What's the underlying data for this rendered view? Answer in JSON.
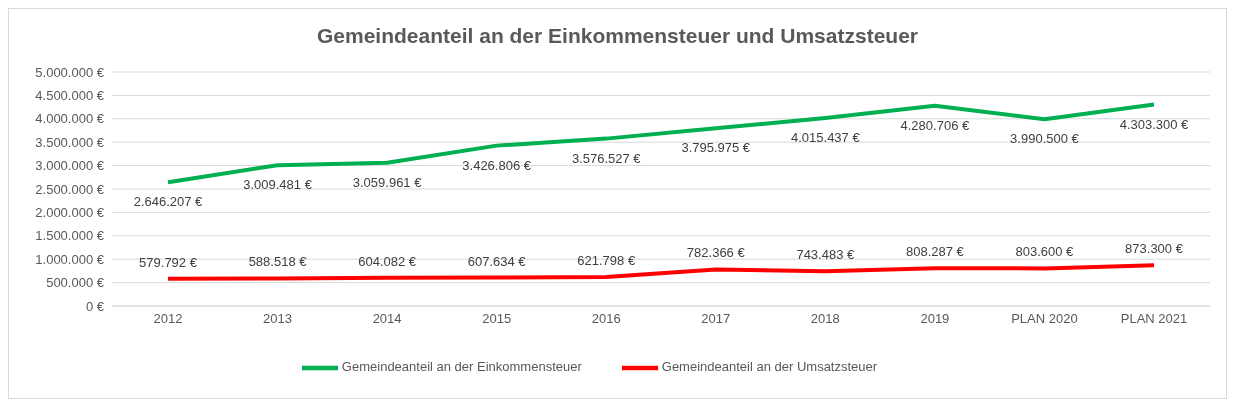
{
  "chart_data": {
    "type": "line",
    "title": "Gemeindeanteil an der Einkommensteuer und Umsatzsteuer",
    "categories": [
      "2012",
      "2013",
      "2014",
      "2015",
      "2016",
      "2017",
      "2018",
      "2019",
      "PLAN 2020",
      "PLAN 2021"
    ],
    "series": [
      {
        "name": "Gemeindeanteil an der Einkommensteuer",
        "color": "#00b050",
        "values": [
          2646207,
          3009481,
          3059961,
          3426806,
          3576527,
          3795975,
          4015437,
          4280706,
          3990500,
          4303300
        ],
        "value_labels": [
          "2.646.207 €",
          "3.009.481 €",
          "3.059.961 €",
          "3.426.806 €",
          "3.576.527 €",
          "3.795.975 €",
          "4.015.437 €",
          "4.280.706 €",
          "3.990.500 €",
          "4.303.300 €"
        ]
      },
      {
        "name": "Gemeindeanteil an der Umsatzsteuer",
        "color": "#ff0000",
        "values": [
          579792,
          588518,
          604082,
          607634,
          621798,
          782366,
          743483,
          808287,
          803600,
          873300
        ],
        "value_labels": [
          "579.792 €",
          "588.518 €",
          "604.082 €",
          "607.634 €",
          "621.798 €",
          "782.366 €",
          "743.483 €",
          "808.287 €",
          "803.600 €",
          "873.300 €"
        ]
      }
    ],
    "ylim": [
      0,
      5000000
    ],
    "yticks": [
      {
        "value": 0,
        "label": "0 €"
      },
      {
        "value": 500000,
        "label": "500.000 €"
      },
      {
        "value": 1000000,
        "label": "1.000.000 €"
      },
      {
        "value": 1500000,
        "label": "1.500.000 €"
      },
      {
        "value": 2000000,
        "label": "2.000.000 €"
      },
      {
        "value": 2500000,
        "label": "2.500.000 €"
      },
      {
        "value": 3000000,
        "label": "3.000.000 €"
      },
      {
        "value": 3500000,
        "label": "3.500.000 €"
      },
      {
        "value": 4000000,
        "label": "4.000.000 €"
      },
      {
        "value": 4500000,
        "label": "4.500.000 €"
      },
      {
        "value": 5000000,
        "label": "5.000.000 €"
      }
    ],
    "grid": "y",
    "legend": "bottom",
    "marker": "none",
    "line_style": "solid"
  }
}
